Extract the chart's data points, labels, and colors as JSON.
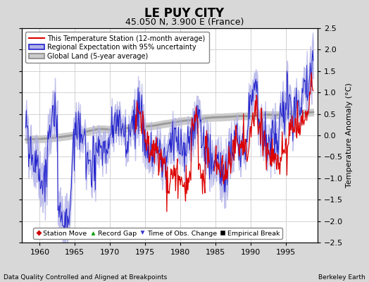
{
  "title": "LE PUY CITY",
  "subtitle": "45.050 N, 3.900 E (France)",
  "xlabel_bottom": "Data Quality Controlled and Aligned at Breakpoints",
  "xlabel_right": "Berkeley Earth",
  "ylabel": "Temperature Anomaly (°C)",
  "xlim": [
    1957.5,
    1999.5
  ],
  "ylim": [
    -2.5,
    2.5
  ],
  "xticks": [
    1960,
    1965,
    1970,
    1975,
    1980,
    1985,
    1990,
    1995
  ],
  "yticks": [
    -2.5,
    -2,
    -1.5,
    -1,
    -0.5,
    0,
    0.5,
    1,
    1.5,
    2,
    2.5
  ],
  "bg_color": "#d8d8d8",
  "plot_bg_color": "#ffffff",
  "grid_color": "#cccccc",
  "station_line_color": "#dd0000",
  "regional_line_color": "#2222cc",
  "regional_fill_color": "#b0b0e8",
  "global_line_color": "#999999",
  "global_fill_color": "#cccccc",
  "seed": 7
}
